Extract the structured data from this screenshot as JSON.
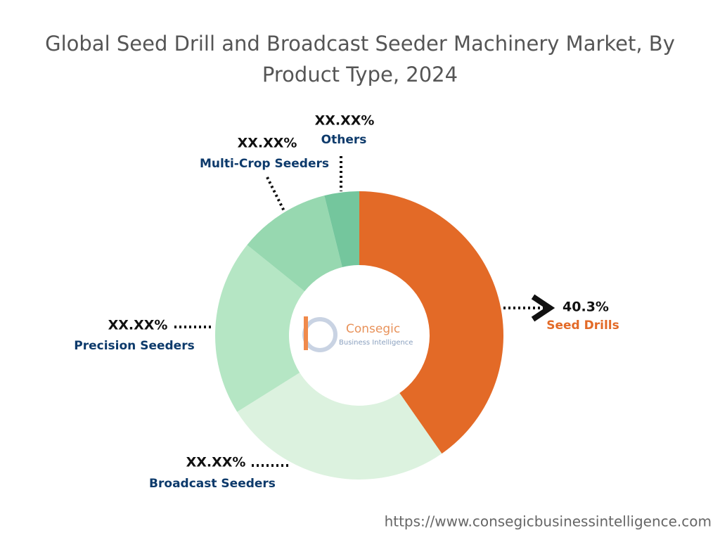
{
  "chart_data": {
    "type": "donut",
    "title": "Global Seed Drill and Broadcast Seeder Machinery Market, By Product Type, 2024",
    "categories": [
      "Seed Drills",
      "Broadcast Seeders",
      "Precision Seeders",
      "Multi-Crop Seeders",
      "Others"
    ],
    "values": [
      40.3,
      25.8,
      19.7,
      10.3,
      3.9
    ],
    "value_labels": [
      "40.3%",
      "XX.XX%",
      "XX.XX%",
      "XX.XX%",
      "XX.XX%"
    ],
    "colors": [
      "#e36a27",
      "#dcf2df",
      "#b5e6c4",
      "#97d8b0",
      "#74c69d"
    ],
    "logo": {
      "name": "Consegic",
      "tagline": "Business Intelligence"
    },
    "source": "https://www.consegicbusinessintelligence.com"
  }
}
